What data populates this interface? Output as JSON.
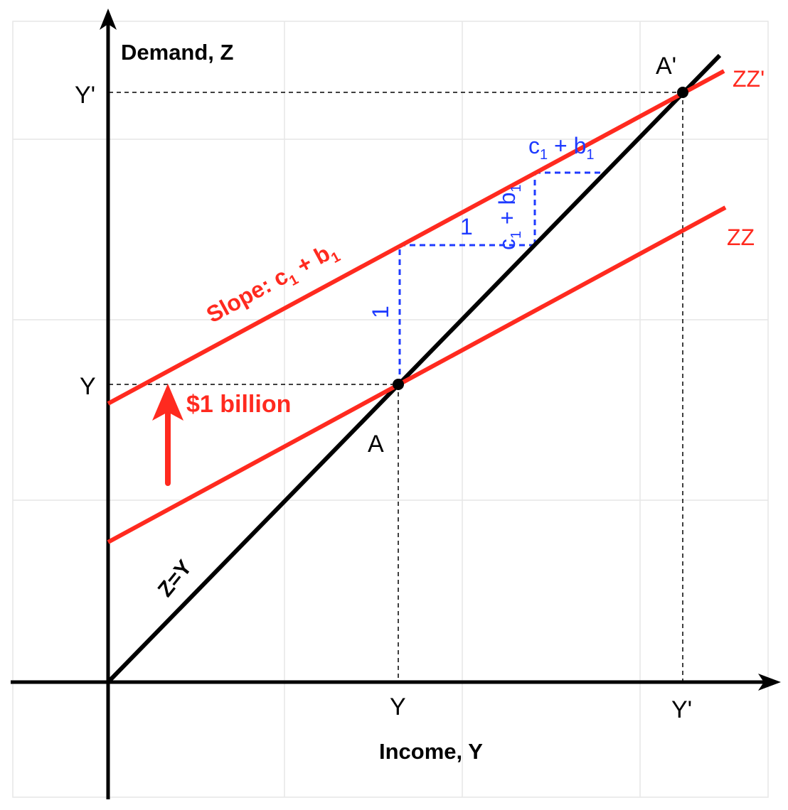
{
  "axes": {
    "y_label": "Demand, Z",
    "x_label": "Income, Y"
  },
  "ticks": {
    "y_axis": [
      "Y'",
      "Y"
    ],
    "x_axis": [
      "Y",
      "Y'"
    ]
  },
  "lines": {
    "zz": "ZZ",
    "zz_prime": "ZZ'",
    "diagonal": "Z=Y",
    "slope_label": {
      "text": "Slope: c",
      "sub1": "1",
      "mid": " + b",
      "sub2": "1"
    }
  },
  "points": {
    "a": "A",
    "a_prime": "A'"
  },
  "shift": {
    "label": "$1 billion"
  },
  "step_labels": {
    "one_vertical": "1",
    "one_horizontal": "1",
    "c1b1_vertical": {
      "text": "c",
      "sub1": "1",
      "mid": " + b",
      "sub2": "1"
    },
    "c1b1_horizontal": {
      "text": "c",
      "sub1": "1",
      "mid": " + b",
      "sub2": "1"
    }
  },
  "colors": {
    "curve": "#ff2a1f",
    "diagonal": "#000000",
    "steps": "#1f3bff",
    "grid": "#e6e6e6"
  }
}
